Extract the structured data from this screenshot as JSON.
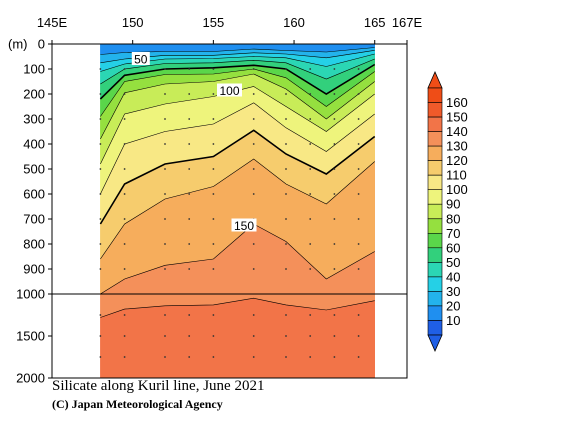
{
  "chart_data": {
    "type": "contour",
    "title": "Silicate along Kuril line, June 2021",
    "credit": "(C) Japan Meteorological Agency",
    "x_axis": {
      "unit": "E",
      "range": [
        145,
        167
      ],
      "ticks": [
        {
          "value": 145,
          "label": "145E"
        },
        {
          "value": 150,
          "label": "150"
        },
        {
          "value": 155,
          "label": "155"
        },
        {
          "value": 160,
          "label": "160"
        },
        {
          "value": 165,
          "label": "165"
        },
        {
          "value": 167,
          "label": "167E"
        }
      ]
    },
    "y_axis": {
      "unit_label": "(m)",
      "range": [
        0,
        2000
      ],
      "scale_break_at": 1000,
      "ticks": [
        {
          "value": 0,
          "label": "0"
        },
        {
          "value": 100,
          "label": "100"
        },
        {
          "value": 200,
          "label": "200"
        },
        {
          "value": 300,
          "label": "300"
        },
        {
          "value": 400,
          "label": "400"
        },
        {
          "value": 500,
          "label": "500"
        },
        {
          "value": 600,
          "label": "600"
        },
        {
          "value": 700,
          "label": "700"
        },
        {
          "value": 800,
          "label": "800"
        },
        {
          "value": 900,
          "label": "900"
        },
        {
          "value": 1000,
          "label": "1000"
        },
        {
          "value": 1500,
          "label": "1500"
        },
        {
          "value": 2000,
          "label": "2000"
        }
      ]
    },
    "data_extent_lon": [
      148,
      165
    ],
    "colorbar": {
      "levels": [
        10,
        20,
        30,
        40,
        50,
        60,
        70,
        80,
        90,
        100,
        110,
        120,
        130,
        140,
        150,
        160
      ],
      "colors": [
        "#1f5fe6",
        "#1f8ff0",
        "#23b3ec",
        "#25d0e6",
        "#2bd6b4",
        "#32d07c",
        "#5ad64a",
        "#95e03f",
        "#c8ec58",
        "#eef47c",
        "#f8e885",
        "#f6cc6d",
        "#f6ad5c",
        "#f4905a",
        "#f27448",
        "#f05a2a",
        "#ef4d17"
      ]
    },
    "contour_labels": [
      {
        "value": 50,
        "label": "50",
        "lon": 150.5,
        "depth": 60
      },
      {
        "value": 100,
        "label": "100",
        "lon": 156.0,
        "depth": 186
      },
      {
        "value": 150,
        "label": "150",
        "lon": 156.9,
        "depth": 726
      }
    ],
    "profiles": [
      {
        "lon": 148.0,
        "depths": [
          0,
          42,
          75,
          110,
          160,
          220,
          290,
          380,
          480,
          600,
          720,
          860,
          1000,
          1280,
          2000
        ]
      },
      {
        "lon": 149.5,
        "depths": [
          0,
          34,
          60,
          80,
          100,
          125,
          150,
          195,
          280,
          400,
          560,
          720,
          940,
          1180,
          2000
        ]
      },
      {
        "lon": 152.0,
        "depths": [
          0,
          30,
          45,
          60,
          78,
          100,
          122,
          160,
          240,
          350,
          480,
          620,
          885,
          1140,
          2000
        ]
      },
      {
        "lon": 155.0,
        "depths": [
          0,
          30,
          45,
          58,
          75,
          95,
          120,
          150,
          210,
          320,
          450,
          570,
          860,
          1130,
          2000
        ]
      },
      {
        "lon": 157.5,
        "depths": [
          0,
          20,
          35,
          50,
          65,
          85,
          100,
          120,
          170,
          235,
          345,
          460,
          720,
          1050,
          2000
        ]
      },
      {
        "lon": 159.5,
        "depths": [
          0,
          26,
          40,
          55,
          75,
          100,
          135,
          180,
          250,
          335,
          440,
          560,
          790,
          1130,
          2000
        ]
      },
      {
        "lon": 162.0,
        "depths": [
          0,
          32,
          55,
          90,
          140,
          200,
          250,
          300,
          350,
          430,
          520,
          640,
          940,
          1190,
          2000
        ]
      },
      {
        "lon": 165.0,
        "depths": [
          0,
          14,
          25,
          40,
          60,
          82,
          110,
          150,
          200,
          280,
          370,
          470,
          830,
          1080,
          2000
        ]
      }
    ]
  }
}
